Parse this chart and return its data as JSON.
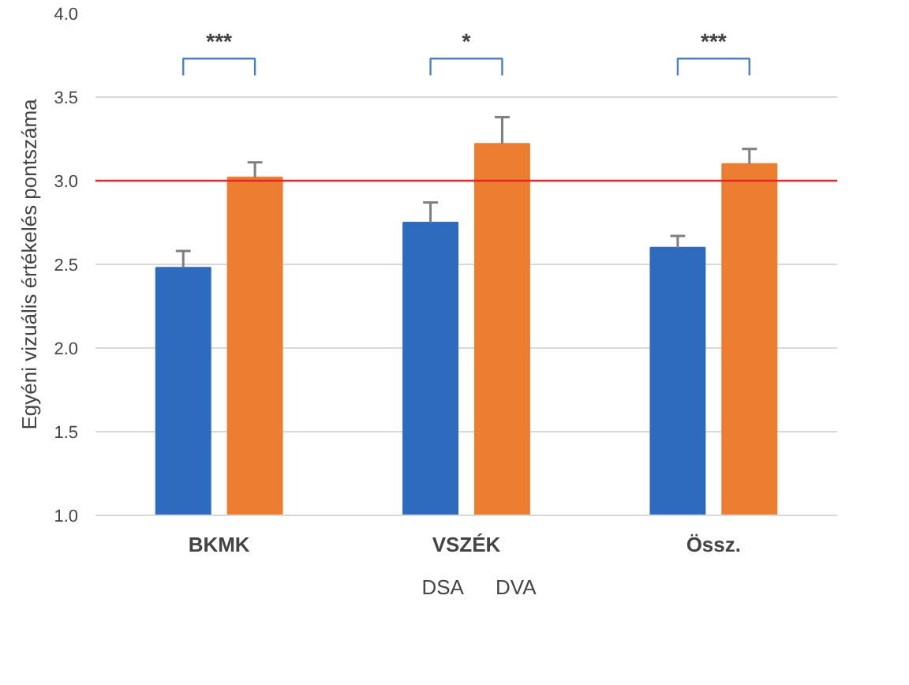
{
  "chart_data": {
    "type": "bar",
    "ylabel": "Egyéni vizuális értékelés pontszáma",
    "categories": [
      "BKMK",
      "VSZÉK",
      "Össz."
    ],
    "series": [
      {
        "name": "DSA",
        "color": "#2e6bbf",
        "values": [
          2.48,
          2.75,
          2.6
        ],
        "errors": [
          [
            2.48,
            2.58
          ],
          [
            2.75,
            2.87
          ],
          [
            2.6,
            2.67
          ]
        ]
      },
      {
        "name": "DVA",
        "color": "#ed7d31",
        "values": [
          3.02,
          3.22,
          3.1
        ],
        "errors": [
          [
            3.02,
            3.11
          ],
          [
            3.22,
            3.38
          ],
          [
            3.1,
            3.19
          ]
        ]
      }
    ],
    "ylim": [
      1.0,
      4.0
    ],
    "yticks": [
      {
        "value": 1,
        "label": "1.0"
      },
      {
        "value": 1.5,
        "label": "1.5"
      },
      {
        "value": 2,
        "label": "2.0"
      },
      {
        "value": 2.5,
        "label": "2.5"
      },
      {
        "value": 3,
        "label": "3.0"
      },
      {
        "value": 3.5,
        "label": "3.5"
      },
      {
        "value": 4,
        "label": "4.0"
      }
    ],
    "ref_lines": [
      {
        "axis": "y",
        "value": 3.0,
        "color": "#e8262a"
      }
    ],
    "annotations": [
      "***",
      "*",
      "***"
    ],
    "grid": "y",
    "legend": "bottom"
  }
}
